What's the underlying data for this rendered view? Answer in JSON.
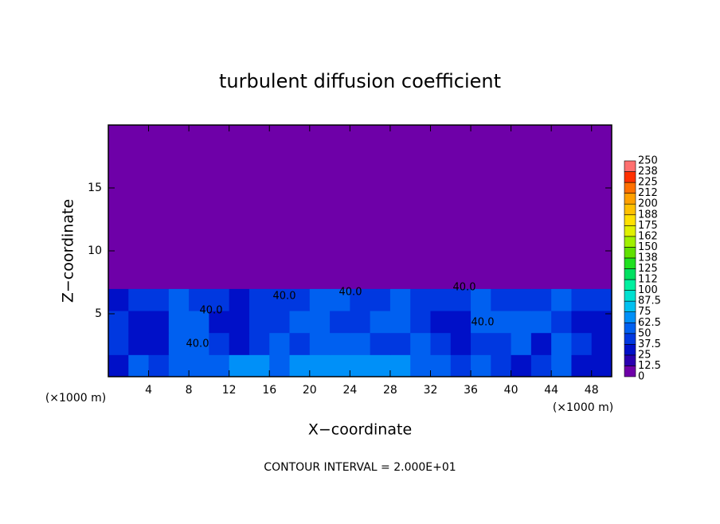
{
  "chart_data": {
    "type": "heatmap",
    "title": "turbulent diffusion coefficient",
    "x_label": "X−coordinate",
    "y_label": "Z−coordinate",
    "x_unit_label": "(×1000 m)",
    "footer": "CONTOUR INTERVAL = 2.000E+01",
    "xlim": [
      0,
      50
    ],
    "ylim": [
      0,
      20
    ],
    "xticks": [
      4,
      8,
      12,
      16,
      20,
      24,
      28,
      32,
      36,
      40,
      44,
      48
    ],
    "yticks": [
      5,
      10,
      15
    ],
    "x_edges": [
      0,
      2,
      4,
      6,
      8,
      10,
      12,
      14,
      16,
      18,
      20,
      22,
      24,
      26,
      28,
      30,
      32,
      34,
      36,
      38,
      40,
      42,
      44,
      46,
      48,
      50
    ],
    "z_edges": [
      0,
      1.75,
      3.5,
      5.25,
      7,
      20
    ],
    "values": [
      [
        30,
        55,
        45,
        50,
        60,
        62,
        70,
        65,
        62,
        65,
        70,
        72,
        70,
        68,
        65,
        55,
        60,
        45,
        50,
        40,
        35,
        38,
        50,
        30,
        35
      ],
      [
        40,
        30,
        35,
        50,
        55,
        40,
        35,
        45,
        50,
        45,
        55,
        60,
        50,
        40,
        45,
        55,
        40,
        35,
        40,
        45,
        50,
        35,
        55,
        40,
        30
      ],
      [
        45,
        35,
        30,
        55,
        50,
        35,
        30,
        40,
        45,
        55,
        50,
        45,
        40,
        50,
        50,
        45,
        35,
        30,
        50,
        55,
        55,
        50,
        45,
        30,
        35
      ],
      [
        35,
        40,
        45,
        50,
        45,
        40,
        35,
        45,
        40,
        45,
        50,
        55,
        45,
        45,
        55,
        45,
        40,
        40,
        55,
        45,
        45,
        40,
        50,
        45,
        40
      ],
      [
        0,
        0,
        0,
        0,
        0,
        0,
        0,
        0,
        0,
        0,
        0,
        0,
        0,
        0,
        0,
        0,
        0,
        0,
        0,
        0,
        0,
        0,
        0,
        0,
        0
      ]
    ],
    "contour_labels": [
      "40.0",
      "40.0",
      "40.0",
      "40.0",
      "40.0",
      "40.0"
    ],
    "colorbar": {
      "levels": [
        0,
        12.5,
        25,
        37.5,
        50,
        62.5,
        75,
        87.5,
        100,
        112,
        125,
        138,
        150,
        162,
        175,
        188,
        200,
        212,
        225,
        238,
        250
      ],
      "colors": [
        "#6e00a8",
        "#2a00b0",
        "#0010c8",
        "#0038e0",
        "#0060f0",
        "#0090f8",
        "#00c0f0",
        "#00e0d0",
        "#00f0a0",
        "#00e060",
        "#20e020",
        "#60e000",
        "#a0f000",
        "#e0f000",
        "#ffe000",
        "#ffc000",
        "#ffa000",
        "#ff7000",
        "#ff3000",
        "#ff7070"
      ]
    }
  }
}
